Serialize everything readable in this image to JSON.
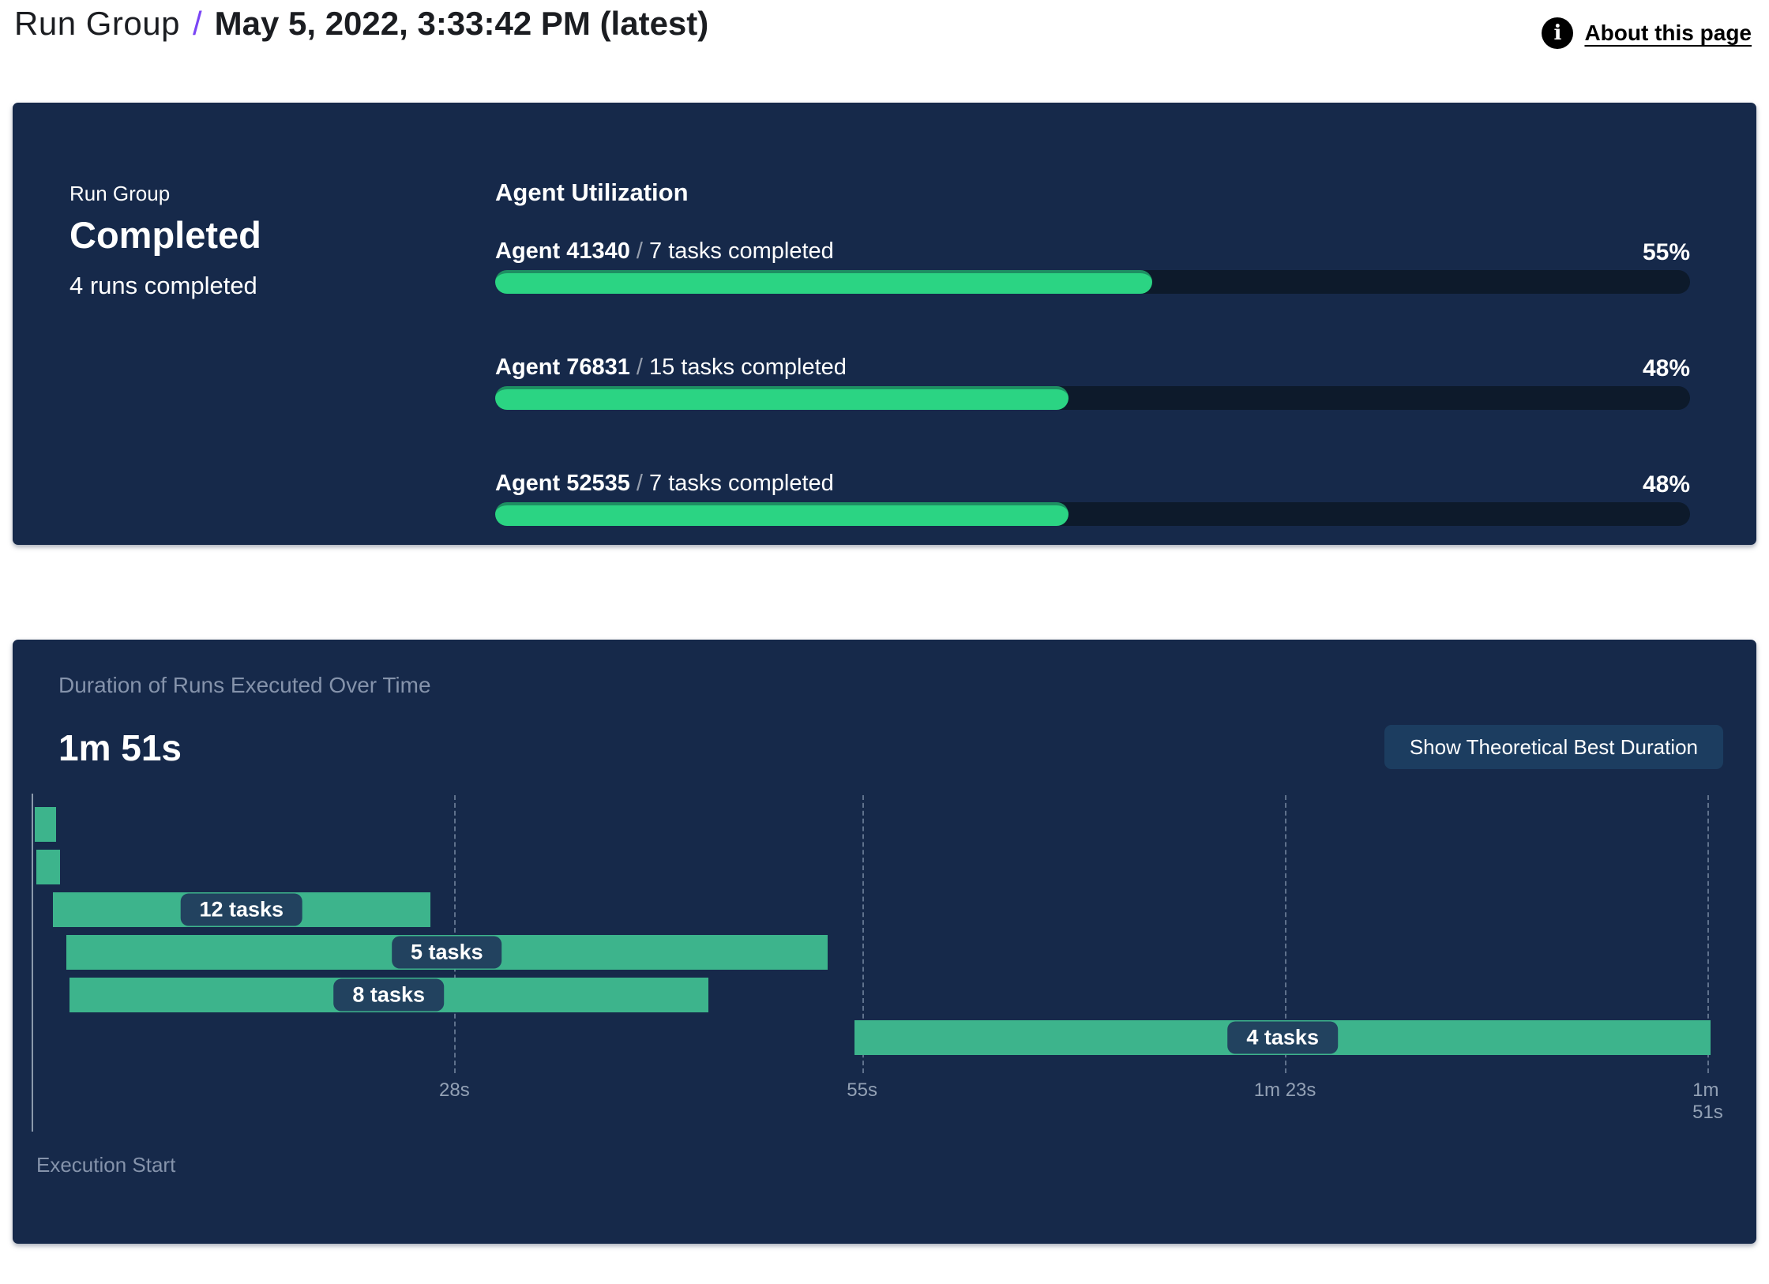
{
  "header": {
    "breadcrumb_root": "Run Group",
    "separator": "/",
    "title": "May 5, 2022, 3:33:42 PM (latest)",
    "about_link": "About this page",
    "info_icon_glyph": "i"
  },
  "summary": {
    "label": "Run Group",
    "status": "Completed",
    "runs_completed": "4 runs completed"
  },
  "duration_panel": {
    "button_label": "Show Theoretical Best Duration"
  },
  "chart_data": [
    {
      "type": "bar",
      "title": "Agent Utilization",
      "categories": [
        "Agent 41340",
        "Agent 76831",
        "Agent 52535"
      ],
      "task_labels": [
        "7 tasks completed",
        "15 tasks completed",
        "7 tasks completed"
      ],
      "separator": "/",
      "values": [
        55,
        48,
        48
      ],
      "value_labels": [
        "55%",
        "48%",
        "48%"
      ],
      "xlim": [
        0,
        100
      ],
      "legend_position": "none",
      "grid": false
    },
    {
      "type": "bar",
      "variant": "gantt",
      "title": "Duration of Runs Executed Over Time",
      "total_label": "1m 51s",
      "xlabel": "Execution Start",
      "xlim_seconds": [
        0,
        111.5
      ],
      "x_ticks": [
        {
          "label": "28s",
          "seconds": 28
        },
        {
          "label": "55s",
          "seconds": 55
        },
        {
          "label": "1m 23s",
          "seconds": 83
        },
        {
          "label": "1m 51s",
          "seconds": 111
        }
      ],
      "bars": [
        {
          "row": 0,
          "start_s": 0.2,
          "end_s": 1.6,
          "label": ""
        },
        {
          "row": 1,
          "start_s": 0.3,
          "end_s": 1.9,
          "label": ""
        },
        {
          "row": 2,
          "start_s": 1.4,
          "end_s": 26.4,
          "label": "12 tasks"
        },
        {
          "row": 3,
          "start_s": 2.3,
          "end_s": 52.7,
          "label": "5 tasks"
        },
        {
          "row": 4,
          "start_s": 2.5,
          "end_s": 44.8,
          "label": "8 tasks"
        },
        {
          "row": 5,
          "start_s": 54.5,
          "end_s": 111.2,
          "label": "4 tasks"
        }
      ],
      "grid": "dashed-vertical",
      "legend_position": "none"
    }
  ],
  "colors": {
    "accent_purple": "#7a45f5",
    "panel_background": "#16294a",
    "progress_green": "#2bd483",
    "progress_green_edge": "#1e8f62",
    "progress_track": "#0d1a2b",
    "gantt_bar_teal": "#3db48c",
    "task_pill_background": "#22425f",
    "button_background": "#1c3d60",
    "muted_text": "#8593ab"
  }
}
